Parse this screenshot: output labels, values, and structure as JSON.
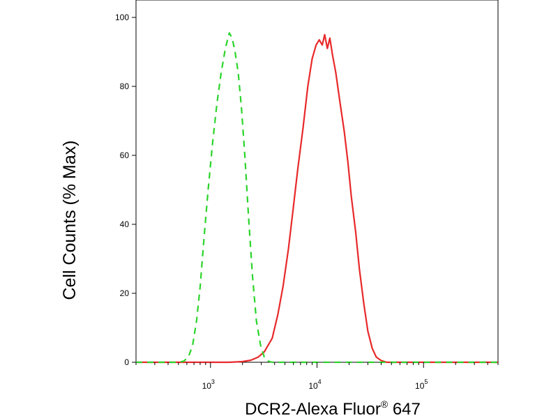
{
  "chart_data": {
    "type": "line",
    "xlabel": "DCR2-Alexa Fluor",
    "xlabel_superscript": "®",
    "xlabel_suffix": " 647",
    "ylabel": "Cell Counts (% Max)",
    "x_scale": "log",
    "xlim": [
      200,
      500000
    ],
    "ylim": [
      0,
      105
    ],
    "y_ticks": [
      0,
      20,
      40,
      60,
      80,
      100
    ],
    "x_ticks": [
      {
        "value": 1000,
        "base": "10",
        "exp": "3"
      },
      {
        "value": 10000,
        "base": "10",
        "exp": "4"
      },
      {
        "value": 100000,
        "base": "10",
        "exp": "5"
      }
    ],
    "grid": false,
    "series": [
      {
        "color": "#e8282a",
        "style": "solid",
        "points": [
          [
            200,
            0
          ],
          [
            1500,
            0
          ],
          [
            2000,
            0.2
          ],
          [
            2400,
            0.6
          ],
          [
            2800,
            1.5
          ],
          [
            3200,
            3
          ],
          [
            3800,
            7
          ],
          [
            4300,
            14
          ],
          [
            4800,
            22
          ],
          [
            5400,
            33
          ],
          [
            6000,
            45
          ],
          [
            6600,
            56
          ],
          [
            7400,
            68
          ],
          [
            8200,
            80
          ],
          [
            9000,
            88
          ],
          [
            9800,
            92
          ],
          [
            10500,
            93.5
          ],
          [
            11200,
            92
          ],
          [
            11800,
            95
          ],
          [
            12500,
            91
          ],
          [
            13200,
            94
          ],
          [
            14000,
            89
          ],
          [
            15000,
            84
          ],
          [
            16500,
            75
          ],
          [
            18000,
            67
          ],
          [
            19500,
            58
          ],
          [
            21000,
            48
          ],
          [
            23000,
            38
          ],
          [
            25000,
            27
          ],
          [
            27500,
            17
          ],
          [
            30000,
            9
          ],
          [
            33000,
            4
          ],
          [
            36000,
            1.5
          ],
          [
            40000,
            0.5
          ],
          [
            45000,
            0
          ],
          [
            500000,
            0
          ]
        ]
      },
      {
        "color": "#2bd42b",
        "style": "dashed",
        "points": [
          [
            200,
            0
          ],
          [
            500,
            0
          ],
          [
            560,
            0.3
          ],
          [
            620,
            1.5
          ],
          [
            680,
            5
          ],
          [
            740,
            12
          ],
          [
            800,
            22
          ],
          [
            870,
            36
          ],
          [
            950,
            50
          ],
          [
            1050,
            64
          ],
          [
            1150,
            75
          ],
          [
            1260,
            84
          ],
          [
            1380,
            91
          ],
          [
            1500,
            95.5
          ],
          [
            1600,
            94
          ],
          [
            1700,
            90
          ],
          [
            1820,
            84
          ],
          [
            1950,
            74
          ],
          [
            2100,
            60
          ],
          [
            2280,
            42
          ],
          [
            2480,
            25
          ],
          [
            2700,
            12
          ],
          [
            2950,
            5
          ],
          [
            3200,
            1.5
          ],
          [
            3500,
            0.3
          ],
          [
            3800,
            0
          ],
          [
            500000,
            0
          ]
        ]
      }
    ]
  }
}
